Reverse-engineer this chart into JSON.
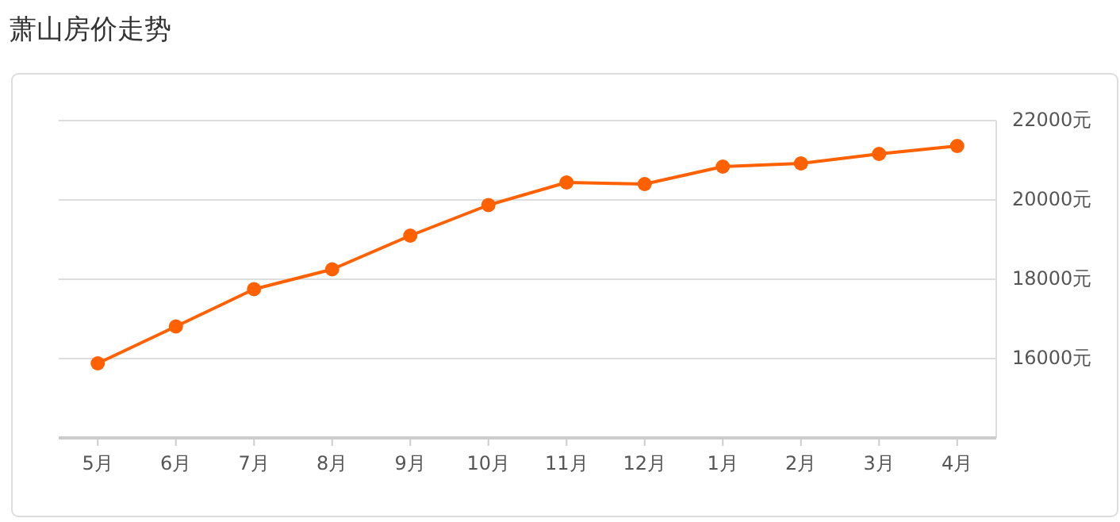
{
  "chart_data": {
    "type": "line",
    "title": "萧山房价走势",
    "categories": [
      "5月",
      "6月",
      "7月",
      "8月",
      "9月",
      "10月",
      "11月",
      "12月",
      "1月",
      "2月",
      "3月",
      "4月"
    ],
    "series": [
      {
        "color": "#ff6000",
        "values": [
          15880,
          16810,
          17750,
          18250,
          19100,
          19870,
          20440,
          20400,
          20840,
          20920,
          21160,
          21360
        ]
      }
    ],
    "ylim": [
      14000,
      22000
    ],
    "yticks": [
      {
        "value": 16000,
        "label": "16000元"
      },
      {
        "value": 18000,
        "label": "18000元"
      },
      {
        "value": 20000,
        "label": "20000元"
      },
      {
        "value": 22000,
        "label": "22000元"
      }
    ],
    "grid": "y",
    "marker": "circle",
    "line_style": "solid"
  }
}
